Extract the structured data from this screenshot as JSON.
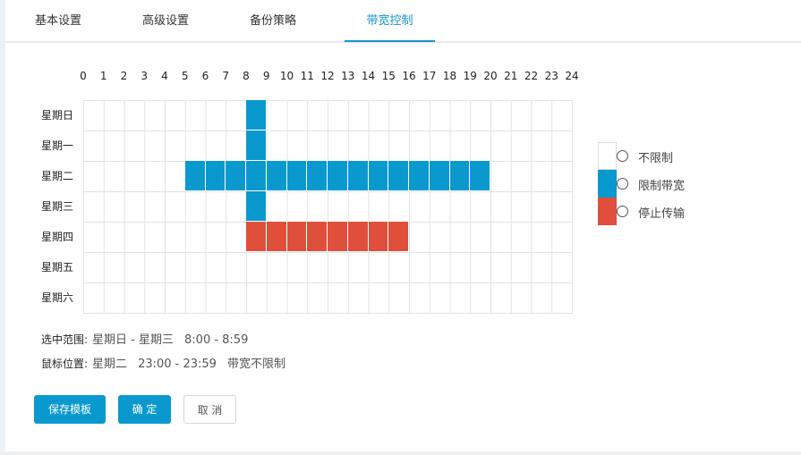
{
  "tabs": [
    {
      "label": "基本设置",
      "active": false
    },
    {
      "label": "高级设置",
      "active": false
    },
    {
      "label": "备份策略",
      "active": false
    },
    {
      "label": "带宽控制",
      "active": true
    }
  ],
  "schedule": {
    "hours": [
      "0",
      "1",
      "2",
      "3",
      "4",
      "5",
      "6",
      "7",
      "8",
      "9",
      "10",
      "11",
      "12",
      "13",
      "14",
      "15",
      "16",
      "17",
      "18",
      "19",
      "20",
      "21",
      "22",
      "23",
      "24"
    ],
    "days": [
      "星期日",
      "星期一",
      "星期二",
      "星期三",
      "星期四",
      "星期五",
      "星期六"
    ],
    "colors": {
      "limit": "#0a99cf",
      "stop": "#e04f3b",
      "none": "#ffffff"
    },
    "blocks": [
      {
        "day": 0,
        "start_hour": 8,
        "end_hour": 9,
        "mode": "limit"
      },
      {
        "day": 1,
        "start_hour": 8,
        "end_hour": 9,
        "mode": "limit"
      },
      {
        "day": 2,
        "start_hour": 5,
        "end_hour": 20,
        "mode": "limit"
      },
      {
        "day": 3,
        "start_hour": 8,
        "end_hour": 9,
        "mode": "limit"
      },
      {
        "day": 4,
        "start_hour": 8,
        "end_hour": 16,
        "mode": "stop"
      }
    ]
  },
  "legend": {
    "items": [
      {
        "label": "不限制",
        "mode": "none"
      },
      {
        "label": "限制带宽",
        "mode": "limit"
      },
      {
        "label": "停止传输",
        "mode": "stop"
      }
    ]
  },
  "info": {
    "selection_label": "选中范围:",
    "selection_days": "星期日 - 星期三",
    "selection_time": "8:00 - 8:59",
    "mouse_label": "鼠标位置:",
    "mouse_day": "星期二",
    "mouse_time": "23:00 - 23:59",
    "mouse_status": "带宽不限制"
  },
  "buttons": {
    "save_template": "保存模板",
    "confirm": "确 定",
    "cancel": "取 消"
  }
}
